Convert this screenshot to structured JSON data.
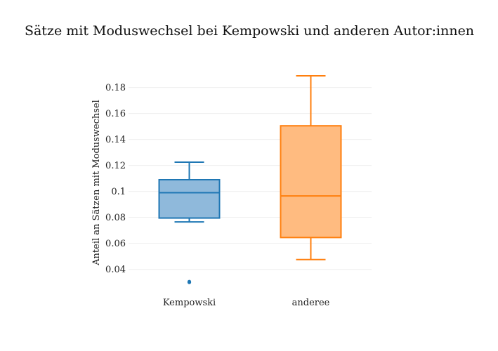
{
  "chart_data": {
    "type": "box",
    "title": "Sätze mit Moduswechsel bei Kempowski und anderen Autor:innen",
    "xlabel": "",
    "ylabel": "Anteil an Sätzen mit Moduswechsel",
    "ylim": [
      0.022,
      0.196
    ],
    "yticks": [
      0.04,
      0.06,
      0.08,
      0.1,
      0.12,
      0.14,
      0.16,
      0.18
    ],
    "ytick_labels": [
      "0.04",
      "0.06",
      "0.08",
      "0.1",
      "0.12",
      "0.14",
      "0.16",
      "0.18"
    ],
    "grid": true,
    "categories": [
      "Kempowski",
      "anderee"
    ],
    "series": [
      {
        "category": "Kempowski",
        "color": "#1f77b4",
        "fill": "#8fb9db",
        "whisker_low": 0.0765,
        "q1": 0.0795,
        "median": 0.099,
        "q3": 0.109,
        "whisker_high": 0.1225,
        "outliers": [
          0.03,
          0.0305
        ]
      },
      {
        "category": "anderee",
        "color": "#ff7f0e",
        "fill": "#ffbb80",
        "whisker_low": 0.0475,
        "q1": 0.0645,
        "median": 0.0965,
        "q3": 0.1505,
        "whisker_high": 0.189,
        "outliers": []
      }
    ]
  }
}
